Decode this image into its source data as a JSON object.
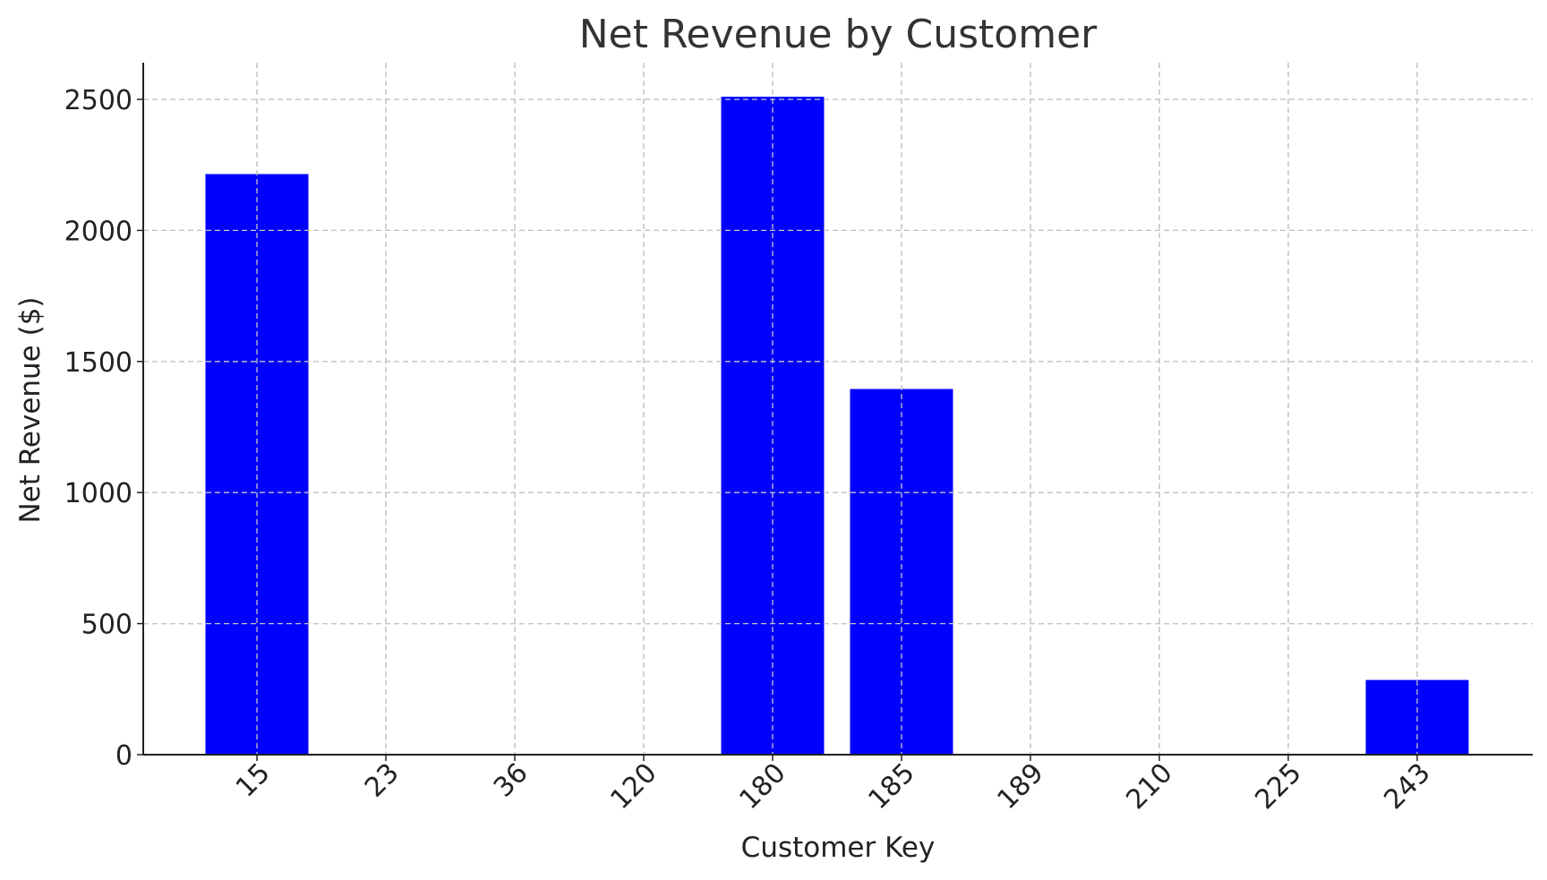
{
  "chart_data": {
    "type": "bar",
    "title": "Net Revenue by Customer",
    "xlabel": "Customer Key",
    "ylabel": "Net Revenue ($)",
    "categories": [
      "15",
      "23",
      "36",
      "120",
      "180",
      "185",
      "189",
      "210",
      "225",
      "243"
    ],
    "values": [
      2215,
      0,
      0,
      0,
      2510,
      1395,
      0,
      0,
      0,
      285
    ],
    "ylim": [
      0,
      2640
    ],
    "yticks": [
      0,
      500,
      1000,
      1500,
      2000,
      2500
    ],
    "grid": true,
    "bar_color": "#0000ff",
    "legend": null
  }
}
